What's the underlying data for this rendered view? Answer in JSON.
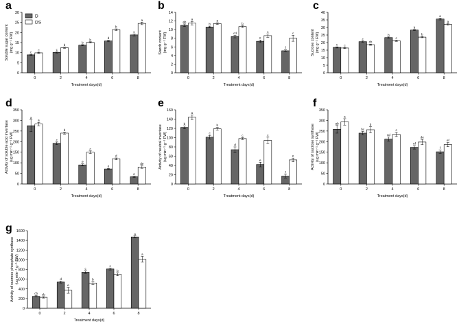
{
  "legend": {
    "d_label": "D",
    "ds_label": "DS",
    "d_color": "#666666",
    "ds_color": "#ffffff"
  },
  "chart_data": [
    {
      "id": "a",
      "type": "bar",
      "categories": [
        "0",
        "2",
        "4",
        "6",
        "8"
      ],
      "xlabel": "Treatment days(d)",
      "ylabel1": "Soluble sugar content",
      "ylabel2": "(mg g⁻¹ FW)",
      "ylim": [
        0,
        30
      ],
      "yticks": [
        0,
        5,
        10,
        15,
        20,
        25,
        30
      ],
      "series": [
        {
          "name": "D",
          "values": [
            8.9,
            10.1,
            13.7,
            15.8,
            18.8
          ],
          "errors": [
            0.3,
            0.3,
            0.3,
            0.4,
            0.5
          ],
          "letters": [
            "c",
            "c",
            "b",
            "d",
            "c"
          ]
        },
        {
          "name": "DS",
          "values": [
            9.9,
            12.4,
            15.1,
            21.4,
            24.5
          ],
          "errors": [
            0.3,
            0.3,
            0.3,
            0.4,
            0.6
          ],
          "letters": [
            "c",
            "b",
            "b",
            "b",
            "a"
          ]
        }
      ]
    },
    {
      "id": "b",
      "type": "bar",
      "categories": [
        "0",
        "2",
        "4",
        "6",
        "8"
      ],
      "xlabel": "Treatment days(d)",
      "ylabel1": "Starch content",
      "ylabel2": "(mg g⁻¹ FW)",
      "ylim": [
        0,
        14
      ],
      "yticks": [
        0,
        2,
        4,
        6,
        8,
        10,
        12,
        14
      ],
      "series": [
        {
          "name": "D",
          "values": [
            11.0,
            10.6,
            8.4,
            7.3,
            5.1
          ],
          "errors": [
            0.3,
            0.2,
            0.3,
            0.3,
            0.2
          ],
          "letters": [
            "ab",
            "b",
            "cd",
            "e",
            "f"
          ]
        },
        {
          "name": "DS",
          "values": [
            11.5,
            11.4,
            10.7,
            8.6,
            8.0
          ],
          "errors": [
            0.4,
            0.2,
            0.2,
            0.4,
            0.7
          ],
          "letters": [
            "a",
            "a",
            "b",
            "c",
            "c"
          ]
        }
      ]
    },
    {
      "id": "c",
      "type": "bar",
      "categories": [
        "0",
        "2",
        "4",
        "6",
        "8"
      ],
      "xlabel": "Treatment days(d)",
      "ylabel1": "Sucrose content",
      "ylabel2": "(mg g⁻¹ FW)",
      "ylim": [
        0,
        40
      ],
      "yticks": [
        0,
        5,
        10,
        15,
        20,
        25,
        30,
        35,
        40
      ],
      "series": [
        {
          "name": "D",
          "values": [
            16.8,
            20.6,
            23.3,
            28.3,
            35.6
          ],
          "errors": [
            0.4,
            0.4,
            0.4,
            0.4,
            0.6
          ],
          "letters": [
            "c",
            "c",
            "b",
            "b",
            "a"
          ]
        },
        {
          "name": "DS",
          "values": [
            16.4,
            18.6,
            21.2,
            23.6,
            32.0
          ],
          "errors": [
            0.4,
            0.4,
            0.4,
            0.4,
            0.5
          ],
          "letters": [
            "c",
            "cb",
            "c",
            "b",
            "a"
          ]
        }
      ]
    },
    {
      "id": "d",
      "type": "bar",
      "categories": [
        "0",
        "2",
        "4",
        "6",
        "8"
      ],
      "xlabel": "Treatment days(d)",
      "ylabel1": "Activity of soluble acid invertase",
      "ylabel2": "(ug min⁻¹ g⁻¹ FW)",
      "ylim": [
        0,
        350
      ],
      "yticks": [
        0,
        50,
        100,
        150,
        200,
        250,
        300,
        350
      ],
      "series": [
        {
          "name": "D",
          "values": [
            275,
            192,
            90,
            71,
            34
          ],
          "errors": [
            28,
            6,
            5,
            3,
            3
          ],
          "letters": [
            "a",
            "c",
            "e",
            "e",
            "e"
          ]
        },
        {
          "name": "DS",
          "values": [
            283,
            240,
            150,
            119,
            80
          ],
          "errors": [
            8,
            5,
            6,
            4,
            6
          ],
          "letters": [
            "a",
            "b",
            "c",
            "d",
            "de"
          ]
        }
      ]
    },
    {
      "id": "e",
      "type": "bar",
      "categories": [
        "0",
        "2",
        "4",
        "6",
        "8"
      ],
      "xlabel": "Treatment days(d)",
      "ylabel1": "Activity of neutral invertase",
      "ylabel2": "(ug min⁻¹ g⁻¹ FW)",
      "ylim": [
        0,
        160
      ],
      "yticks": [
        0,
        20,
        40,
        60,
        80,
        100,
        120,
        140,
        160
      ],
      "series": [
        {
          "name": "D",
          "values": [
            122,
            101,
            74,
            42,
            17
          ],
          "errors": [
            3,
            4,
            6,
            5,
            4
          ],
          "letters": [
            "b",
            "c",
            "d",
            "e",
            "f"
          ]
        },
        {
          "name": "DS",
          "values": [
            144,
            119,
            98,
            94,
            52
          ],
          "errors": [
            5,
            3,
            2,
            7,
            4
          ],
          "letters": [
            "a",
            "b",
            "c",
            "c",
            "e"
          ]
        }
      ]
    },
    {
      "id": "f",
      "type": "bar",
      "categories": [
        "0",
        "2",
        "4",
        "6",
        "8"
      ],
      "xlabel": "Treatment days(d)",
      "ylabel1": "Activity of sucrose synthase",
      "ylabel2": "(ug min⁻¹ g⁻¹ FW)",
      "ylim": [
        0,
        350
      ],
      "yticks": [
        0,
        50,
        100,
        150,
        200,
        250,
        300,
        350
      ],
      "series": [
        {
          "name": "D",
          "values": [
            258,
            240,
            212,
            173,
            152
          ],
          "errors": [
            18,
            8,
            10,
            8,
            8
          ],
          "letters": [
            "ab",
            "bc",
            "cd",
            "ef",
            "f"
          ]
        },
        {
          "name": "DS",
          "values": [
            293,
            256,
            234,
            198,
            186
          ],
          "errors": [
            15,
            15,
            10,
            12,
            10
          ],
          "letters": [
            "a",
            "b",
            "c",
            "de",
            "ef"
          ]
        }
      ]
    },
    {
      "id": "g",
      "type": "bar",
      "categories": [
        "0",
        "2",
        "4",
        "6",
        "8"
      ],
      "xlabel": "Treatment days(d)",
      "ylabel1": "Activity of sucrose phosphate synthase",
      "ylabel2": "(ug min⁻¹ g⁻¹ FW)",
      "ylim": [
        0,
        1600
      ],
      "yticks": [
        0,
        200,
        400,
        600,
        800,
        1000,
        1200,
        1400,
        1600
      ],
      "series": [
        {
          "name": "D",
          "values": [
            245,
            540,
            745,
            810,
            1470
          ],
          "errors": [
            15,
            20,
            25,
            20,
            20
          ],
          "letters": [
            "cb",
            "d",
            "c",
            "c",
            "a"
          ]
        },
        {
          "name": "DS",
          "values": [
            225,
            370,
            520,
            700,
            1010
          ],
          "errors": [
            15,
            60,
            30,
            30,
            60
          ],
          "letters": [
            "cb",
            "e",
            "b",
            "b",
            "a"
          ]
        }
      ]
    }
  ]
}
